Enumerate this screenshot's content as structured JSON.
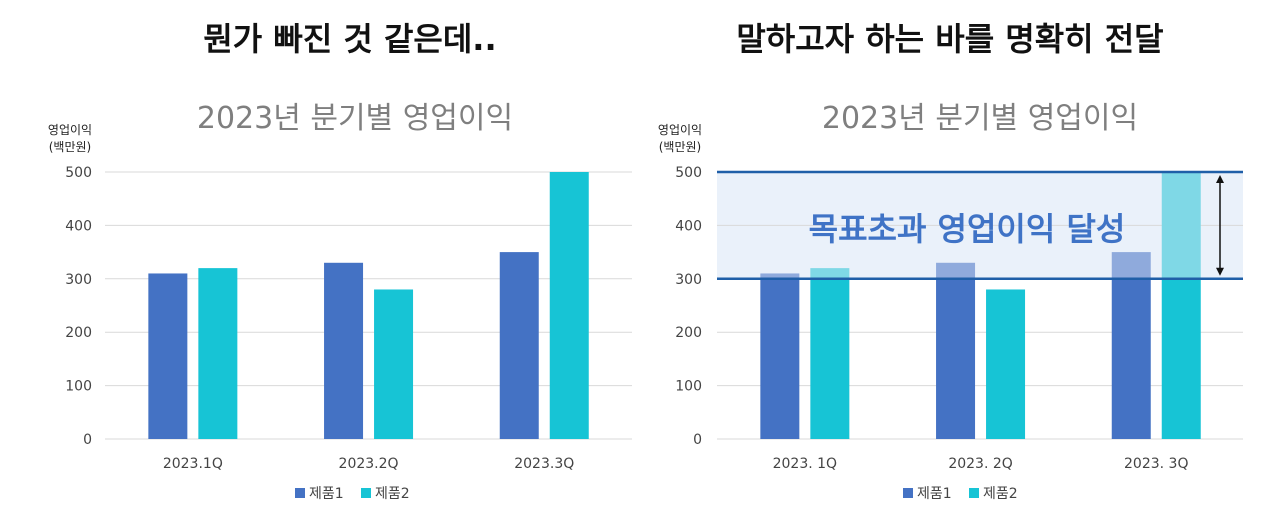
{
  "headings": {
    "left": "뭔가 빠진 것 같은데..",
    "right": "말하고자 하는 바를 명확히 전달"
  },
  "colors": {
    "product1": "#4472c4",
    "product2": "#17c4d5",
    "product1_light": "#8faadc",
    "product2_light": "#7fd8e6",
    "band": "#eaf1fa",
    "band_line": "#1f5fa8",
    "grid": "#d9d9d9",
    "callout": "#3f73c6"
  },
  "chart_data": [
    {
      "type": "bar",
      "title": "2023년 분기별 영업이익",
      "ylabel": "영업이익\n(백만원)",
      "xlabel": "",
      "categories": [
        "2023.1Q",
        "2023.2Q",
        "2023.3Q"
      ],
      "series": [
        {
          "name": "제품1",
          "values": [
            310,
            330,
            350
          ]
        },
        {
          "name": "제품2",
          "values": [
            320,
            280,
            500
          ]
        }
      ],
      "ylim": [
        0,
        500
      ],
      "yticks": [
        0,
        100,
        200,
        300,
        400,
        500
      ],
      "grid": true,
      "legend": "bottom"
    },
    {
      "type": "bar",
      "title": "2023년 분기별 영업이익",
      "ylabel": "영업이익\n(백만원)",
      "xlabel": "",
      "categories": [
        "2023. 1Q",
        "2023. 2Q",
        "2023. 3Q"
      ],
      "series": [
        {
          "name": "제품1",
          "values": [
            310,
            330,
            350
          ]
        },
        {
          "name": "제품2",
          "values": [
            320,
            280,
            500
          ]
        }
      ],
      "ylim": [
        0,
        500
      ],
      "yticks": [
        0,
        100,
        200,
        300,
        400,
        500
      ],
      "grid": true,
      "legend": "bottom",
      "highlight_band": {
        "from": 300,
        "to": 500
      },
      "annotation": "목표초과 영업이익 달성"
    }
  ]
}
